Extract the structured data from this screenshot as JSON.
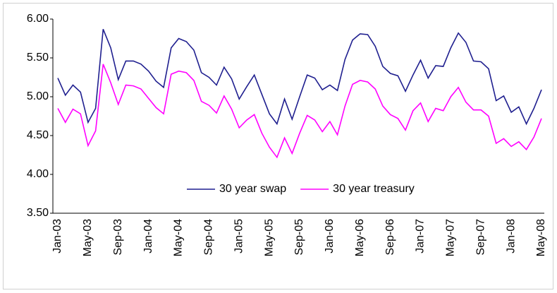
{
  "chart_data": {
    "type": "line",
    "categories": [
      "Jan-03",
      null,
      null,
      null,
      "May-03",
      null,
      null,
      null,
      "Sep-03",
      null,
      null,
      null,
      "Jan-04",
      null,
      null,
      null,
      "May-04",
      null,
      null,
      null,
      "Sep-04",
      null,
      null,
      null,
      "Jan-05",
      null,
      null,
      null,
      "May-05",
      null,
      null,
      null,
      "Sep-05",
      null,
      null,
      null,
      "Jan-06",
      null,
      null,
      null,
      "May-06",
      null,
      null,
      null,
      "Sep-06",
      null,
      null,
      null,
      "Jan-07",
      null,
      null,
      null,
      "May-07",
      null,
      null,
      null,
      "Sep-07",
      null,
      null,
      null,
      "Jan-08",
      null,
      null,
      null,
      "May-08"
    ],
    "series": [
      {
        "name": "30 year swap",
        "color": "#1f1f8f",
        "values": [
          5.24,
          5.02,
          5.15,
          5.06,
          4.67,
          4.85,
          5.87,
          5.63,
          5.22,
          5.46,
          5.46,
          5.42,
          5.33,
          5.2,
          5.12,
          5.63,
          5.75,
          5.71,
          5.6,
          5.31,
          5.25,
          5.15,
          5.38,
          5.23,
          4.97,
          5.13,
          5.28,
          5.03,
          4.78,
          4.65,
          4.97,
          4.71,
          5.0,
          5.28,
          5.24,
          5.09,
          5.15,
          5.08,
          5.48,
          5.73,
          5.81,
          5.8,
          5.65,
          5.39,
          5.3,
          5.27,
          5.07,
          5.28,
          5.47,
          5.24,
          5.4,
          5.39,
          5.63,
          5.82,
          5.7,
          5.46,
          5.45,
          5.36,
          4.95,
          5.01,
          4.8,
          4.87,
          4.65,
          4.85,
          5.09
        ]
      },
      {
        "name": "30 year treasury",
        "color": "#ff00ff",
        "values": [
          4.85,
          4.67,
          4.84,
          4.78,
          4.37,
          4.56,
          5.42,
          5.18,
          4.9,
          5.15,
          5.14,
          5.1,
          4.98,
          4.86,
          4.78,
          5.29,
          5.33,
          5.31,
          5.21,
          4.94,
          4.89,
          4.79,
          5.01,
          4.84,
          4.6,
          4.7,
          4.77,
          4.53,
          4.35,
          4.22,
          4.47,
          4.27,
          4.53,
          4.76,
          4.7,
          4.55,
          4.68,
          4.51,
          4.88,
          5.16,
          5.21,
          5.19,
          5.1,
          4.88,
          4.77,
          4.72,
          4.57,
          4.82,
          4.92,
          4.68,
          4.85,
          4.82,
          5.0,
          5.12,
          4.93,
          4.83,
          4.83,
          4.75,
          4.4,
          4.46,
          4.36,
          4.42,
          4.32,
          4.48,
          4.72
        ]
      }
    ],
    "ylim": [
      3.5,
      6.0
    ],
    "yticks": [
      {
        "value": 3.5,
        "label": "3.50"
      },
      {
        "value": 4.0,
        "label": "4.00"
      },
      {
        "value": 4.5,
        "label": "4.50"
      },
      {
        "value": 5.0,
        "label": "5.00"
      },
      {
        "value": 5.5,
        "label": "5.50"
      },
      {
        "value": 6.0,
        "label": "6.00"
      }
    ],
    "grid": false,
    "legend": "lower center"
  }
}
